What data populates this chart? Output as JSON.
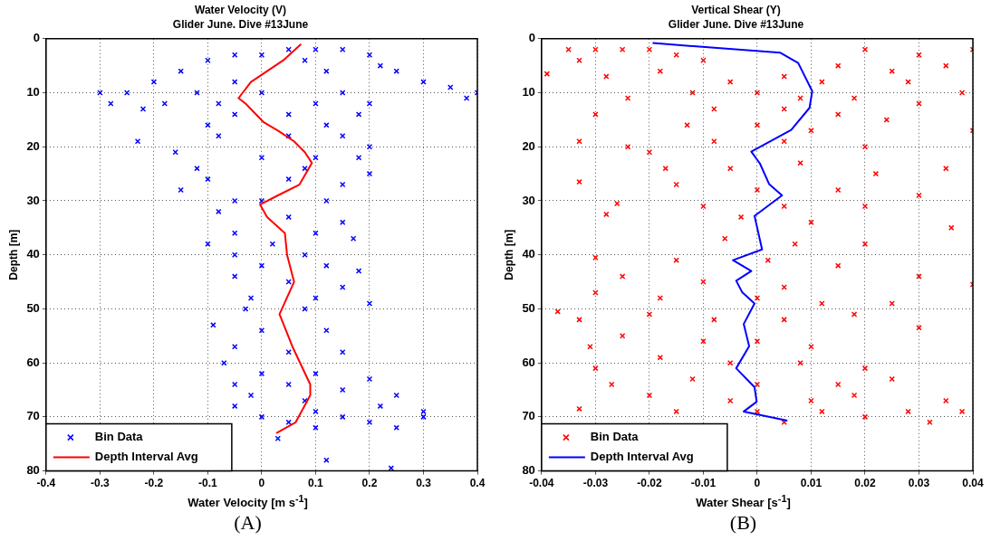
{
  "chart_data": [
    {
      "type": "scatter",
      "title": "Water Velocity (V)",
      "subtitle": "Glider June. Dive #13June",
      "xlabel": "Water Velocity [m s$^{-1}$]",
      "ylabel": "Depth [m]",
      "xlim": [
        -0.4,
        0.4
      ],
      "xticks": [
        -0.4,
        -0.3,
        -0.2,
        -0.1,
        0,
        0.1,
        0.2,
        0.3,
        0.4
      ],
      "ylim": [
        80,
        0
      ],
      "yticks": [
        0,
        10,
        20,
        30,
        40,
        50,
        60,
        70,
        80
      ],
      "grid": true,
      "legend": "bottom left",
      "annotations": [
        "(A)"
      ],
      "series": [
        {
          "name": "Bin Data",
          "marker": "cross",
          "color": "#0000ff",
          "x": [
            0.05,
            0.1,
            0.15,
            -0.05,
            0.0,
            0.2,
            -0.1,
            0.08,
            0.22,
            -0.15,
            0.12,
            0.25,
            -0.2,
            -0.05,
            0.3,
            0.35,
            -0.3,
            -0.25,
            -0.12,
            0.0,
            0.15,
            0.4,
            0.38,
            -0.28,
            -0.18,
            -0.08,
            0.1,
            0.2,
            -0.22,
            -0.05,
            0.05,
            0.18,
            -0.1,
            0.12,
            -0.23,
            -0.08,
            0.05,
            0.15,
            0.2,
            -0.16,
            0.0,
            0.1,
            0.18,
            -0.12,
            0.08,
            0.2,
            -0.1,
            0.05,
            0.15,
            -0.15,
            -0.05,
            0.0,
            0.12,
            -0.08,
            0.05,
            0.15,
            -0.05,
            0.1,
            -0.1,
            0.02,
            0.17,
            -0.05,
            0.08,
            0.0,
            0.12,
            0.18,
            -0.05,
            0.05,
            0.15,
            -0.02,
            0.1,
            0.2,
            -0.03,
            0.08,
            -0.09,
            0.0,
            0.12,
            -0.05,
            0.05,
            0.15,
            -0.07,
            0.0,
            0.1,
            0.2,
            -0.05,
            0.05,
            0.15,
            0.25,
            -0.02,
            0.08,
            0.22,
            0.3,
            -0.05,
            0.1,
            0.0,
            0.15,
            0.3,
            0.05,
            0.2,
            0.25,
            0.1,
            0.03,
            0.12,
            0.24
          ],
          "values": [
            2,
            2,
            2,
            3,
            3,
            3,
            4,
            4,
            5,
            6,
            6,
            6,
            8,
            8,
            8,
            9,
            10,
            10,
            10,
            10,
            10,
            10,
            11,
            12,
            12,
            12,
            12,
            12,
            13,
            14,
            14,
            14,
            16,
            16,
            19,
            18,
            18,
            18,
            20,
            21,
            22,
            22,
            22,
            24,
            24,
            25,
            26,
            26,
            27,
            28,
            30,
            30,
            30,
            32,
            33,
            34,
            36,
            36,
            38,
            38,
            37,
            40,
            40,
            42,
            42,
            43,
            44,
            45,
            46,
            48,
            48,
            49,
            50,
            50,
            53,
            54,
            54,
            57,
            58,
            58,
            60,
            62,
            62,
            63,
            64,
            64,
            65,
            66,
            66,
            67,
            68,
            69,
            68,
            69,
            70,
            70,
            70,
            71,
            71,
            72,
            72,
            74,
            78,
            79.5
          ]
        },
        {
          "name": "Depth Interval Avg",
          "type": "line",
          "marker": "none",
          "color": "#ff0000",
          "x": [
            0.073,
            0.04,
            -0.02,
            -0.043,
            -0.03,
            0.003,
            0.03,
            0.06,
            0.08,
            0.093,
            0.07,
            0.03,
            -0.003,
            0.01,
            0.043,
            0.047,
            0.06,
            0.033,
            0.057,
            0.09,
            0.09,
            0.063,
            0.027
          ],
          "values": [
            1,
            4,
            8,
            11,
            12,
            15.4,
            17,
            19,
            21,
            23,
            27,
            29,
            30.7,
            33,
            36,
            40,
            45,
            51,
            57,
            64,
            66,
            71,
            73
          ]
        }
      ]
    },
    {
      "type": "scatter",
      "title": "Vertical Shear (Y)",
      "subtitle": "Glider June. Dive #13June",
      "xlabel": "Water Shear [s$^{-1}$]",
      "ylabel": "Depth [m]",
      "xlim": [
        -0.04,
        0.04
      ],
      "xticks": [
        -0.04,
        -0.03,
        -0.02,
        -0.01,
        0,
        0.01,
        0.02,
        0.03,
        0.04
      ],
      "ylim": [
        80,
        0
      ],
      "yticks": [
        0,
        10,
        20,
        30,
        40,
        50,
        60,
        70,
        80
      ],
      "grid": true,
      "legend": "bottom left",
      "annotations": [
        "(B)"
      ],
      "series": [
        {
          "name": "Bin Data",
          "marker": "cross",
          "color": "#ff0000",
          "x": [
            -0.035,
            -0.03,
            -0.025,
            -0.02,
            -0.015,
            -0.01,
            -0.033,
            -0.039,
            -0.028,
            -0.018,
            0.02,
            0.03,
            0.035,
            0.04,
            0.025,
            0.015,
            0.005,
            -0.005,
            0.012,
            0.028,
            0.038,
            -0.012,
            0.0,
            0.008,
            0.018,
            0.03,
            -0.024,
            -0.03,
            -0.008,
            0.005,
            0.015,
            0.024,
            0.04,
            -0.013,
            0.0,
            0.01,
            -0.033,
            -0.024,
            -0.02,
            -0.008,
            0.005,
            0.02,
            -0.017,
            -0.005,
            0.008,
            0.022,
            0.035,
            -0.033,
            -0.015,
            0.0,
            0.015,
            0.03,
            -0.026,
            -0.01,
            0.005,
            0.02,
            -0.028,
            -0.003,
            0.01,
            0.036,
            -0.006,
            0.007,
            0.02,
            -0.03,
            -0.015,
            0.002,
            0.015,
            0.03,
            -0.025,
            -0.01,
            0.005,
            -0.03,
            -0.018,
            0.0,
            0.012,
            0.025,
            0.04,
            -0.037,
            -0.02,
            -0.008,
            0.005,
            0.018,
            0.03,
            -0.033,
            -0.025,
            -0.01,
            0.0,
            0.01,
            -0.031,
            -0.018,
            -0.005,
            0.008,
            0.02,
            -0.03,
            -0.012,
            0.0,
            0.015,
            0.025,
            -0.027,
            -0.02,
            -0.005,
            0.01,
            0.018,
            0.035,
            -0.033,
            -0.015,
            0.0,
            0.012,
            0.028,
            0.038,
            0.005,
            0.02,
            0.032
          ],
          "values": [
            2,
            2,
            2,
            2,
            3,
            4,
            4,
            6.5,
            7,
            6,
            2,
            3,
            5,
            2,
            6,
            5,
            7,
            8,
            8,
            8,
            10,
            10,
            10,
            11,
            11,
            12,
            11,
            14,
            13,
            13,
            14,
            15,
            17,
            16,
            16,
            17,
            19,
            20,
            21,
            19,
            19,
            20,
            24,
            24,
            23,
            25,
            24,
            26.5,
            27,
            28,
            28,
            29,
            30.5,
            31,
            31,
            31,
            32.5,
            33,
            34,
            35,
            37,
            38,
            38,
            40.5,
            41,
            41,
            42,
            44,
            44,
            45,
            46,
            47,
            48,
            48,
            49,
            49,
            45.5,
            50.5,
            51,
            52,
            52,
            51,
            53.5,
            52,
            55,
            56,
            56,
            57,
            57,
            59,
            60,
            60,
            61,
            61,
            63,
            64,
            64,
            63,
            64,
            66,
            67,
            67,
            66,
            67,
            68.5,
            69,
            69,
            69,
            69,
            69,
            71,
            70,
            71
          ]
        },
        {
          "name": "Depth Interval Avg",
          "type": "line",
          "marker": "none",
          "color": "#0000ff",
          "x": [
            -0.0194,
            0.0043,
            0.0076,
            0.0102,
            0.0097,
            0.0063,
            -0.0011,
            0.0005,
            0.0022,
            0.0046,
            -0.0005,
            0.0009,
            -0.0045,
            -0.0011,
            -0.0039,
            -0.0028,
            -0.0005,
            -0.0025,
            -0.0015,
            -0.0039,
            -0.0005,
            -0.0001,
            -0.0025,
            0.0056
          ],
          "values": [
            0.8,
            2.6,
            4.5,
            9.7,
            12.8,
            16.9,
            20.9,
            23.1,
            26.9,
            29,
            32.8,
            39,
            41,
            43,
            44.8,
            46.9,
            49,
            52.8,
            56.9,
            61,
            64.5,
            67.2,
            69,
            70.7
          ]
        }
      ]
    }
  ]
}
